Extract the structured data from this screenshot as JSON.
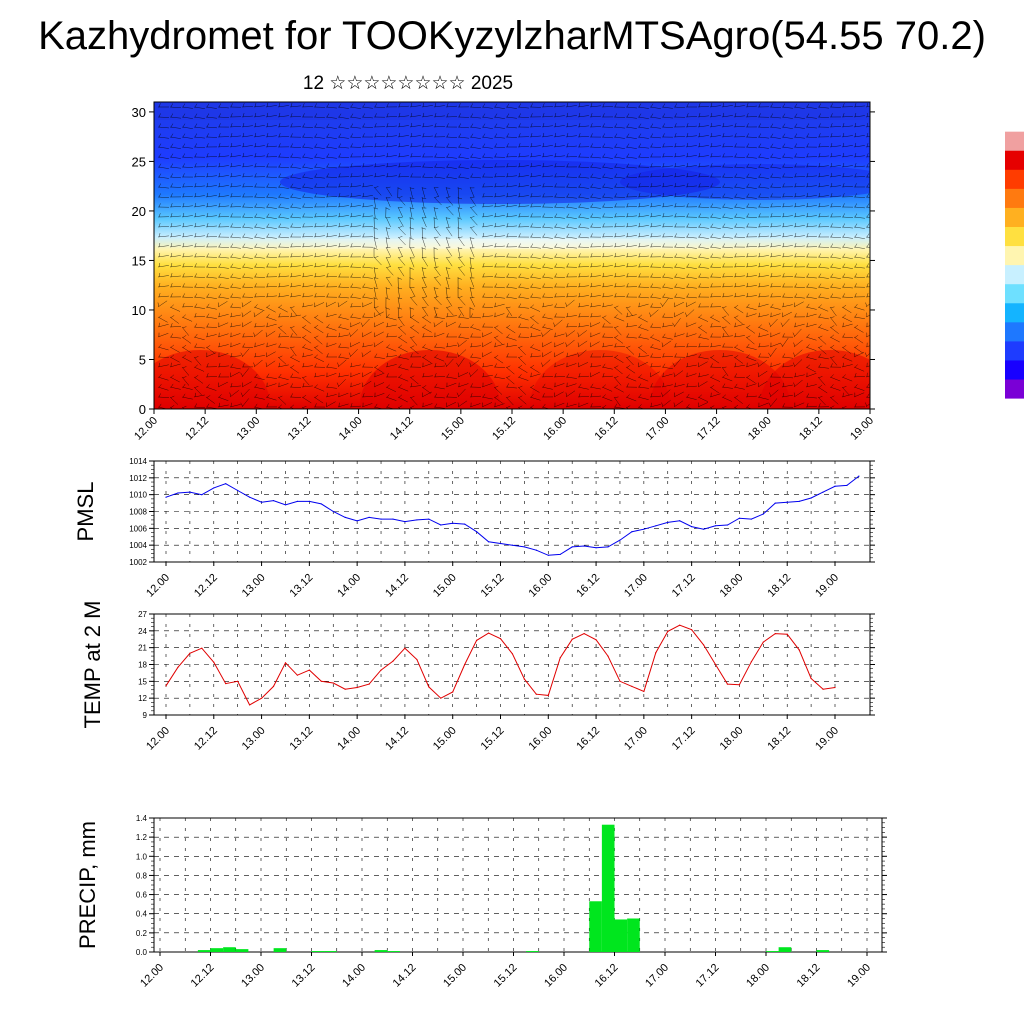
{
  "title": "Kazhydromet for TOOKyzylzharMTSAgro(54.55 70.2)",
  "subtitle": "12 ☆☆☆☆☆☆☆☆ 2025",
  "time_labels": [
    "12.00",
    "12.12",
    "13.00",
    "13.12",
    "14.00",
    "14.12",
    "15.00",
    "15.12",
    "16.00",
    "16.12",
    "17.00",
    "17.12",
    "18.00",
    "18.12",
    "19.00"
  ],
  "chart_data": [
    {
      "type": "heatmap",
      "title": "",
      "xlabel": "",
      "ylabel": "",
      "x_categories": [
        "12.00",
        "12.12",
        "13.00",
        "13.12",
        "14.00",
        "14.12",
        "15.00",
        "15.12",
        "16.00",
        "16.12",
        "17.00",
        "17.12",
        "18.00",
        "18.12",
        "19.00"
      ],
      "ylim": [
        0,
        31
      ],
      "y_ticks": [
        0,
        5,
        10,
        15,
        20,
        25,
        30
      ],
      "colorbar_palette": [
        "#7a00d6",
        "#1800ff",
        "#1e3cff",
        "#1e78ff",
        "#14b4ff",
        "#6ee0ff",
        "#c8f0ff",
        "#fff5b0",
        "#ffe040",
        "#ffb020",
        "#ff7a10",
        "#ff3c00",
        "#e60000",
        "#f0a0a0",
        "#ffffff"
      ],
      "overlay": "wind vectors",
      "grid": false
    },
    {
      "type": "line",
      "ylabel": "PMSL",
      "ylim": [
        1002,
        1014
      ],
      "y_ticks": [
        1002,
        1004,
        1006,
        1008,
        1010,
        1012,
        1014
      ],
      "color": "#0000ee",
      "grid": true,
      "series": [
        {
          "x_step_hours": 3,
          "values": [
            1009.7,
            1010.2,
            1010.3,
            1010.0,
            1010.8,
            1011.3,
            1010.5,
            1009.7,
            1009.1,
            1009.3,
            1008.8,
            1009.2,
            1009.2,
            1008.9,
            1008.0,
            1007.3,
            1006.9,
            1007.3,
            1007.1,
            1007.1,
            1006.8,
            1007.0,
            1007.1,
            1006.4,
            1006.6,
            1006.5,
            1005.6,
            1004.4,
            1004.2,
            1004.0,
            1003.8,
            1003.4,
            1002.8,
            1002.9,
            1003.8,
            1003.9,
            1003.7,
            1003.8,
            1004.6,
            1005.6,
            1005.9,
            1006.3,
            1006.7,
            1006.9,
            1006.2,
            1005.9,
            1006.3,
            1006.4,
            1007.2,
            1007.1,
            1007.7,
            1009.0,
            1009.1,
            1009.2,
            1009.6,
            1010.3,
            1011.0,
            1011.1,
            1012.2
          ]
        }
      ]
    },
    {
      "type": "line",
      "ylabel": "TEMP at 2 M",
      "ylim": [
        9,
        27
      ],
      "y_ticks": [
        9,
        12,
        15,
        18,
        21,
        24,
        27
      ],
      "color": "#e00000",
      "grid": true,
      "series": [
        {
          "x_step_hours": 3,
          "values": [
            14.2,
            17.5,
            20.0,
            20.9,
            18.4,
            14.6,
            15.0,
            10.8,
            12.0,
            14.1,
            18.3,
            16.1,
            17.0,
            15.0,
            14.7,
            13.6,
            13.9,
            14.5,
            17.0,
            18.6,
            20.9,
            18.9,
            14.0,
            12.0,
            13.1,
            18.0,
            22.3,
            23.6,
            22.6,
            19.9,
            15.4,
            12.7,
            12.5,
            19.2,
            22.5,
            23.5,
            22.4,
            19.5,
            15.0,
            14.1,
            13.2,
            20.1,
            23.9,
            25.0,
            24.2,
            21.5,
            18.0,
            14.5,
            14.4,
            18.5,
            22.0,
            23.5,
            23.4,
            20.6,
            15.5,
            13.6,
            13.9
          ]
        }
      ]
    },
    {
      "type": "bar",
      "ylabel": "PRECIP, mm",
      "ylim": [
        0,
        1.4
      ],
      "y_ticks": [
        0.0,
        0.2,
        0.4,
        0.6,
        0.8,
        1.0,
        1.2,
        1.4
      ],
      "color": "#00e61e",
      "grid": true,
      "series": [
        {
          "x_step_hours": 3,
          "values": [
            0,
            0,
            0,
            0.02,
            0.04,
            0.05,
            0.03,
            0,
            0,
            0.04,
            0,
            0,
            0.01,
            0.01,
            0,
            0,
            0,
            0.02,
            0.01,
            0,
            0,
            0,
            0,
            0,
            0,
            0,
            0,
            0,
            0,
            0.01,
            0,
            0,
            0,
            0,
            0.53,
            1.33,
            0.34,
            0.35,
            0,
            0,
            0,
            0,
            0,
            0,
            0,
            0,
            0,
            0,
            0.01,
            0.05,
            0,
            0,
            0.02,
            0,
            0,
            0,
            0
          ]
        }
      ]
    }
  ]
}
